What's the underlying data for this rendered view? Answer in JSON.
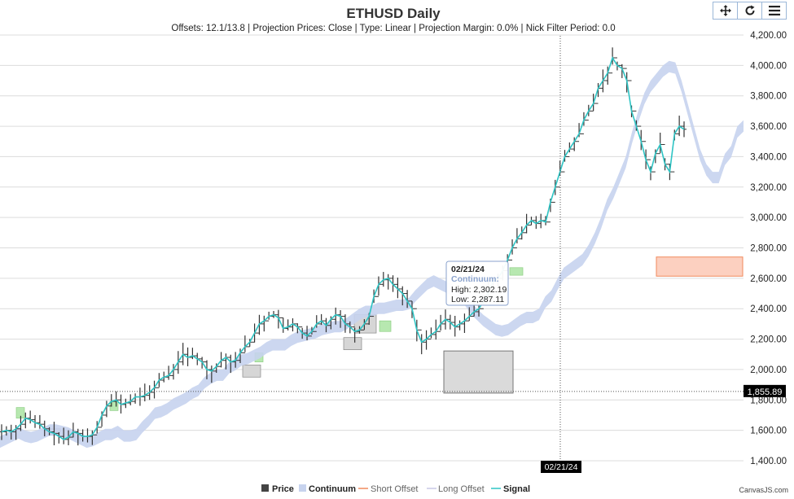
{
  "chart_data": {
    "type": "line",
    "title": "ETHUSD Daily",
    "subtitle": "Offsets: 12.1/13.8 | Projection Prices: Close | Type: Linear | Projection Margin: 0.0% | Nick Filter Period: 0.0",
    "ylim": [
      1400,
      4200
    ],
    "y_tick_labels": [
      "1,400.00",
      "1,600.00",
      "1,800.00",
      "2,000.00",
      "2,200.00",
      "2,400.00",
      "2,600.00",
      "2,800.00",
      "3,000.00",
      "3,200.00",
      "3,400.00",
      "3,600.00",
      "3,800.00",
      "4,000.00",
      "4,200.00"
    ],
    "grid": true,
    "legend_position": "bottom",
    "legend": [
      {
        "name": "Price",
        "color": "#444444"
      },
      {
        "name": "Continuum",
        "color": "#c7d3ee"
      },
      {
        "name": "Short Offset",
        "color": "#f08a5d"
      },
      {
        "name": "Long Offset",
        "color": "#c9c9e6"
      },
      {
        "name": "Signal",
        "color": "#2ec4c4"
      }
    ],
    "crosshair": {
      "x_label": "02/21/24",
      "y_label": "1,855.89",
      "y_value": 1855.89
    },
    "tooltip": {
      "date": "02/21/24",
      "series": "Continuum:",
      "high": "High: 2,302.19",
      "low": "Low: 2,287.11"
    },
    "price_signal": [
      1590,
      1600,
      1590,
      1610,
      1640,
      1680,
      1670,
      1650,
      1640,
      1610,
      1590,
      1580,
      1560,
      1540,
      1555,
      1590,
      1580,
      1560,
      1560,
      1570,
      1620,
      1700,
      1760,
      1790,
      1800,
      1770,
      1780,
      1790,
      1820,
      1820,
      1830,
      1850,
      1880,
      1930,
      1950,
      1960,
      2000,
      2050,
      2100,
      2080,
      2090,
      2070,
      2050,
      2000,
      1990,
      2020,
      2060,
      2080,
      2050,
      2060,
      2110,
      2150,
      2180,
      2240,
      2300,
      2320,
      2350,
      2360,
      2340,
      2270,
      2280,
      2300,
      2280,
      2240,
      2220,
      2250,
      2300,
      2320,
      2290,
      2330,
      2360,
      2350,
      2300,
      2280,
      2250,
      2260,
      2300,
      2350,
      2480,
      2560,
      2590,
      2600,
      2560,
      2530,
      2500,
      2450,
      2400,
      2260,
      2180,
      2200,
      2230,
      2250,
      2300,
      2330,
      2310,
      2280,
      2300,
      2320,
      2350,
      2380,
      2400,
      2450,
      2510,
      2580,
      2600,
      2650,
      2720,
      2800,
      2860,
      2900,
      2950,
      2980,
      2960,
      2980,
      2970,
      3100,
      3200,
      3300,
      3400,
      3450,
      3500,
      3550,
      3640,
      3700,
      3750,
      3850,
      3900,
      3950,
      4050,
      4000,
      3980,
      3900,
      3700,
      3600,
      3500,
      3380,
      3300,
      3420,
      3480,
      3350,
      3300,
      3550,
      3600,
      3580
    ],
    "continuum_upper": [
      1560,
      1580,
      1600,
      1620,
      1600,
      1590,
      1600,
      1620,
      1640,
      1640,
      1630,
      1620,
      1600,
      1580,
      1560,
      1570,
      1590,
      1610,
      1610,
      1630,
      1600,
      1600,
      1610,
      1660,
      1700,
      1750,
      1760,
      1780,
      1810,
      1830,
      1850,
      1880,
      1900,
      1950,
      1980,
      2000,
      2000,
      2050,
      2070,
      2100,
      2110,
      2130,
      2150,
      2180,
      2200,
      2200,
      2200,
      2230,
      2250,
      2260,
      2270,
      2280,
      2300,
      2310,
      2320,
      2320,
      2340,
      2370,
      2400,
      2420,
      2420,
      2440,
      2440,
      2450,
      2460,
      2460,
      2470,
      2520,
      2560,
      2600,
      2620,
      2600,
      2580,
      2560,
      2520,
      2500,
      2440,
      2400,
      2360,
      2330,
      2300,
      2290,
      2300,
      2330,
      2360,
      2380,
      2380,
      2400,
      2480,
      2520,
      2600,
      2670,
      2700,
      2730,
      2760,
      2820,
      2900,
      3000,
      3120,
      3200,
      3300,
      3400,
      3560,
      3700,
      3820,
      3900,
      3950,
      4000,
      4030,
      4020,
      3900,
      3750,
      3600,
      3450,
      3350,
      3300,
      3300,
      3420,
      3470,
      3600,
      3640
    ],
    "short_offset_box": {
      "from": 2614,
      "to": 2740
    },
    "long_offset_box": {
      "from": 1845,
      "to": 2122
    }
  }
}
